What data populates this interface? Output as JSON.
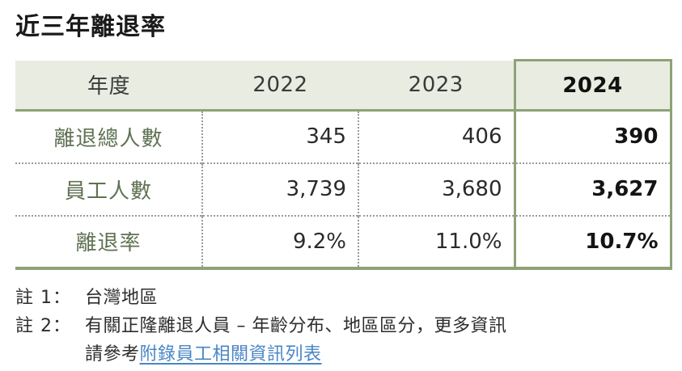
{
  "title": "近三年離退率",
  "table": {
    "header": {
      "label": "年度",
      "years": [
        "2022",
        "2023",
        "2024"
      ]
    },
    "rows": [
      {
        "label": "離退總人數",
        "values": [
          "345",
          "406",
          "390"
        ]
      },
      {
        "label": "員工人數",
        "values": [
          "3,739",
          "3,680",
          "3,627"
        ]
      },
      {
        "label": "離退率",
        "values": [
          "9.2%",
          "11.0%",
          "10.7%"
        ]
      }
    ],
    "highlighted_year": "2024"
  },
  "notes": [
    {
      "label": "註 1：",
      "text": "台灣地區"
    },
    {
      "label": "註 2：",
      "text": "有關正隆離退人員 – 年齡分布、地區區分，更多資訊",
      "line2_prefix": "請參考",
      "link_text": "附錄員工相關資訊列表"
    }
  ],
  "colors": {
    "accent_green_border": "#8ea276",
    "header_background": "#e9ece1",
    "row_label_green": "#5f7152",
    "link_blue": "#4a86c6",
    "text_dark": "#2b2a29"
  }
}
